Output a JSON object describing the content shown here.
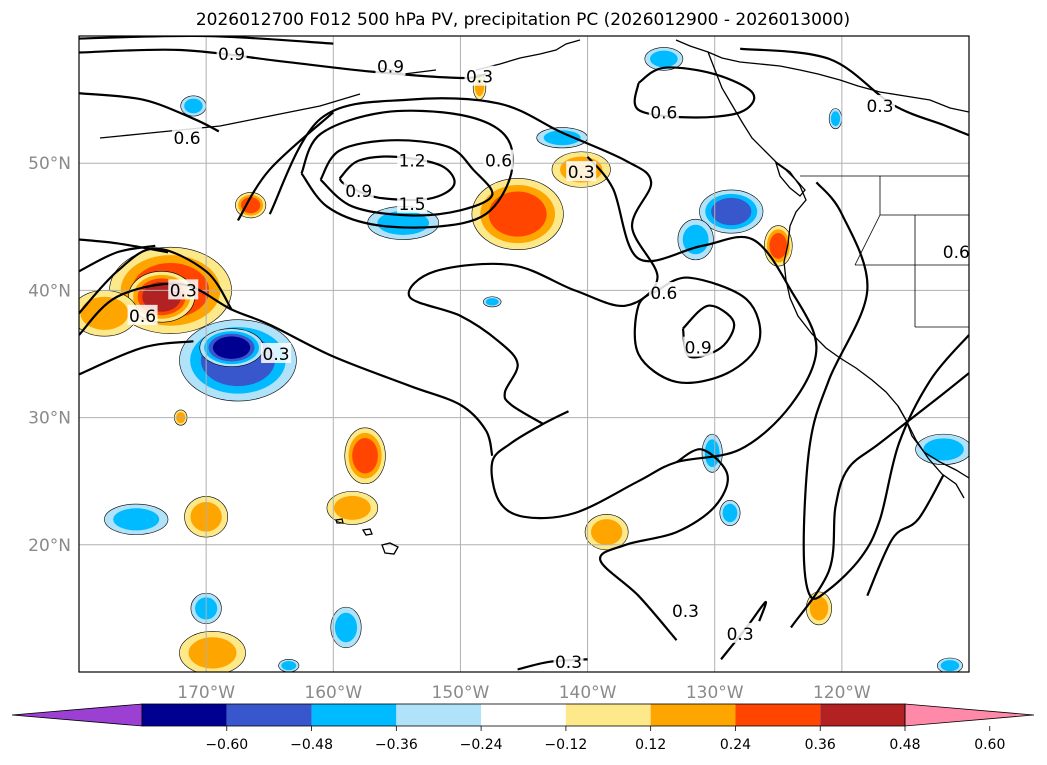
{
  "chart_data": {
    "type": "contour-map",
    "title": "2026012700 F012 500 hPa PV, precipitation PC (2026012900 - 2026013000)",
    "projection": "lat-lon",
    "lon_range": [
      -180,
      -110
    ],
    "lat_range": [
      10,
      60
    ],
    "grid": true,
    "lon_ticks": [
      {
        "value": -170,
        "label": "170°W"
      },
      {
        "value": -160,
        "label": "160°W"
      },
      {
        "value": -150,
        "label": "150°W"
      },
      {
        "value": -140,
        "label": "140°W"
      },
      {
        "value": -130,
        "label": "130°W"
      },
      {
        "value": -120,
        "label": "120°W"
      }
    ],
    "lat_ticks": [
      {
        "value": 50,
        "label": "50°N"
      },
      {
        "value": 40,
        "label": "40°N"
      },
      {
        "value": 30,
        "label": "30°N"
      },
      {
        "value": 20,
        "label": "20°N"
      }
    ],
    "pv_contour_levels": [
      0.3,
      0.6,
      0.9,
      1.2,
      1.5
    ],
    "contour_labels": [
      {
        "text": "0.9",
        "lon": -168.0,
        "lat": 58.6
      },
      {
        "text": "0.9",
        "lon": -155.5,
        "lat": 57.6
      },
      {
        "text": "0.3",
        "lon": -148.5,
        "lat": 56.8
      },
      {
        "text": "0.6",
        "lon": -134.0,
        "lat": 54.0
      },
      {
        "text": "0.3",
        "lon": -117.0,
        "lat": 54.5
      },
      {
        "text": "0.6",
        "lon": -171.5,
        "lat": 52.0
      },
      {
        "text": "1.2",
        "lon": -153.8,
        "lat": 50.2
      },
      {
        "text": "0.6",
        "lon": -147.0,
        "lat": 50.2
      },
      {
        "text": "0.3",
        "lon": -140.5,
        "lat": 49.3
      },
      {
        "text": "0.9",
        "lon": -158.0,
        "lat": 47.8
      },
      {
        "text": "1.5",
        "lon": -153.8,
        "lat": 46.8
      },
      {
        "text": "0.6",
        "lon": -111.0,
        "lat": 43.0
      },
      {
        "text": "0.3",
        "lon": -171.8,
        "lat": 40.0
      },
      {
        "text": "0.6",
        "lon": -175.0,
        "lat": 38.0
      },
      {
        "text": "0.6",
        "lon": -134.0,
        "lat": 39.8
      },
      {
        "text": "0.9",
        "lon": -131.3,
        "lat": 35.5
      },
      {
        "text": "0.3",
        "lon": -164.5,
        "lat": 35.0
      },
      {
        "text": "0.3",
        "lon": -132.3,
        "lat": 14.8
      },
      {
        "text": "0.3",
        "lon": -128.0,
        "lat": 13.0
      },
      {
        "text": "0.3",
        "lon": -141.5,
        "lat": 10.8
      }
    ],
    "pv_contours": [
      {
        "level": 0.9,
        "points": [
          [
            -180,
            58.7
          ],
          [
            -172,
            58.9
          ],
          [
            -164,
            58.0
          ],
          [
            -157,
            57.2
          ],
          [
            -150,
            56.7
          ],
          [
            -148,
            57.0
          ]
        ]
      },
      {
        "level": 0.9,
        "points": [
          [
            -180,
            59.8
          ],
          [
            -170,
            60.0
          ],
          [
            -160,
            59.4
          ]
        ]
      },
      {
        "level": 0.6,
        "points": [
          [
            -180,
            55.5
          ],
          [
            -175,
            55.0
          ],
          [
            -171,
            53.5
          ],
          [
            -169,
            52.5
          ]
        ]
      },
      {
        "level": 0.3,
        "points": [
          [
            -136,
            56.3
          ],
          [
            -134,
            57.5
          ],
          [
            -130,
            57.0
          ],
          [
            -127,
            55.5
          ],
          [
            -128,
            54.0
          ],
          [
            -132,
            53.6
          ],
          [
            -136,
            54.2
          ],
          [
            -136,
            56.3
          ]
        ]
      },
      {
        "level": 0.3,
        "points": [
          [
            -128,
            59.0
          ],
          [
            -121,
            58.2
          ],
          [
            -116,
            54.6
          ],
          [
            -112,
            53.0
          ],
          [
            -110,
            52.2
          ]
        ]
      },
      {
        "level": 1.5,
        "points": [
          [
            -159.5,
            48.8
          ],
          [
            -158,
            50.2
          ],
          [
            -155,
            50.5
          ],
          [
            -151.5,
            49.8
          ],
          [
            -150.5,
            48.3
          ],
          [
            -152.5,
            47.2
          ],
          [
            -156.5,
            47.3
          ],
          [
            -159,
            48.3
          ],
          [
            -159.5,
            48.8
          ]
        ]
      },
      {
        "level": 1.2,
        "points": [
          [
            -161,
            48.7
          ],
          [
            -159.5,
            51.0
          ],
          [
            -155.5,
            51.8
          ],
          [
            -151,
            51.3
          ],
          [
            -149,
            49.5
          ],
          [
            -147.5,
            47.5
          ],
          [
            -150,
            46.3
          ],
          [
            -154,
            45.9
          ],
          [
            -158.5,
            46.6
          ],
          [
            -161,
            48.7
          ]
        ]
      },
      {
        "level": 0.9,
        "points": [
          [
            -162.5,
            49.2
          ],
          [
            -161,
            52.3
          ],
          [
            -156,
            54.0
          ],
          [
            -150,
            53.8
          ],
          [
            -146.5,
            52.2
          ],
          [
            -146,
            49.2
          ],
          [
            -148,
            46.0
          ],
          [
            -152,
            45.0
          ],
          [
            -157,
            45.2
          ],
          [
            -160.5,
            46.6
          ],
          [
            -162.5,
            49.2
          ]
        ]
      },
      {
        "level": 0.6,
        "points": [
          [
            -165,
            46.0
          ],
          [
            -161,
            53.5
          ],
          [
            -154,
            55.0
          ],
          [
            -147,
            54.7
          ],
          [
            -142,
            52.4
          ],
          [
            -137,
            50.2
          ],
          [
            -135,
            48.5
          ],
          [
            -136.5,
            45.0
          ],
          [
            -134.5,
            41.0
          ],
          [
            -137,
            38.8
          ],
          [
            -141,
            40.0
          ],
          [
            -146,
            42.0
          ],
          [
            -152,
            41.5
          ],
          [
            -154,
            39.5
          ],
          [
            -150,
            38.0
          ],
          [
            -147,
            36.0
          ],
          [
            -145.5,
            34.2
          ],
          [
            -146.5,
            32.0
          ],
          [
            -146,
            31.0
          ],
          [
            -143.5,
            29.5
          ]
        ]
      },
      {
        "level": 0.3,
        "points": [
          [
            -167.5,
            45.5
          ],
          [
            -165,
            49.5
          ],
          [
            -160,
            54.0
          ]
        ]
      },
      {
        "level": 0.9,
        "points": [
          [
            -132.5,
            37.0
          ],
          [
            -130.5,
            38.8
          ],
          [
            -128.5,
            37.5
          ],
          [
            -129.5,
            35.5
          ],
          [
            -132,
            34.8
          ],
          [
            -132.5,
            37.0
          ]
        ]
      },
      {
        "level": 0.6,
        "points": [
          [
            -134.5,
            40.0
          ],
          [
            -132,
            41.0
          ],
          [
            -127.5,
            39.3
          ],
          [
            -126.5,
            36.0
          ],
          [
            -129,
            33.5
          ],
          [
            -133,
            32.8
          ],
          [
            -136,
            35.0
          ],
          [
            -136,
            38.8
          ],
          [
            -134.5,
            40.0
          ]
        ]
      },
      {
        "level": 0.3,
        "points": [
          [
            -140,
            50.5
          ],
          [
            -138,
            48.0
          ],
          [
            -136,
            42.5
          ],
          [
            -131,
            43.5
          ],
          [
            -127,
            44.0
          ],
          [
            -124,
            40.0
          ],
          [
            -122,
            35.5
          ],
          [
            -124,
            31.0
          ],
          [
            -128,
            27.5
          ],
          [
            -133,
            26.5
          ],
          [
            -136,
            25.0
          ],
          [
            -141,
            22.5
          ],
          [
            -145,
            22.2
          ],
          [
            -147,
            23.5
          ],
          [
            -147.5,
            26.5
          ],
          [
            -146,
            28.0
          ],
          [
            -143.5,
            29.5
          ],
          [
            -141.5,
            30.5
          ]
        ]
      },
      {
        "level": 0.3,
        "points": [
          [
            -180,
            36.5
          ],
          [
            -177,
            39.5
          ],
          [
            -172,
            40.5
          ],
          [
            -168,
            38.5
          ],
          [
            -165,
            37.3
          ],
          [
            -160,
            34.8
          ],
          [
            -154,
            32.5
          ],
          [
            -150,
            31.0
          ],
          [
            -148,
            29.0
          ],
          [
            -147.5,
            27.0
          ]
        ]
      },
      {
        "level": 0.6,
        "points": [
          [
            -180,
            38.2
          ],
          [
            -177,
            41.5
          ],
          [
            -174,
            43.3
          ],
          [
            -170,
            41.5
          ],
          [
            -168,
            38.5
          ]
        ]
      },
      {
        "level": 0.6,
        "points": [
          [
            -180,
            41.5
          ],
          [
            -177,
            43.0
          ],
          [
            -174,
            43.5
          ]
        ]
      },
      {
        "level": 0.3,
        "points": [
          [
            -180,
            33.4
          ],
          [
            -175,
            35.5
          ],
          [
            -171,
            36.0
          ]
        ]
      },
      {
        "level": 0.3,
        "points": [
          [
            -180,
            44.0
          ],
          [
            -177,
            43.7
          ],
          [
            -173,
            43.0
          ]
        ]
      },
      {
        "level": 0.3,
        "points": [
          [
            -122,
            48.5
          ],
          [
            -120,
            46.0
          ],
          [
            -118,
            40.0
          ],
          [
            -121,
            33.0
          ],
          [
            -122.5,
            28.0
          ],
          [
            -123,
            20.0
          ],
          [
            -122.5,
            16.0
          ],
          [
            -121,
            16.5
          ],
          [
            -118.5,
            19.0
          ],
          [
            -117,
            22.0
          ],
          [
            -115.5,
            28.0
          ],
          [
            -113,
            33.0
          ],
          [
            -110,
            36.5
          ]
        ]
      },
      {
        "level": 0.3,
        "points": [
          [
            -124,
            13.5
          ],
          [
            -121,
            18.0
          ],
          [
            -120.5,
            23.0
          ],
          [
            -119.5,
            26.0
          ],
          [
            -117,
            28.0
          ],
          [
            -112.5,
            31.5
          ],
          [
            -110,
            33.5
          ]
        ]
      },
      {
        "level": 0.3,
        "points": [
          [
            -133,
            12.5
          ],
          [
            -136,
            16.0
          ],
          [
            -139,
            18.8
          ],
          [
            -137,
            20.0
          ],
          [
            -133,
            21.0
          ],
          [
            -130,
            23.0
          ],
          [
            -129,
            25.5
          ],
          [
            -131,
            27.5
          ],
          [
            -133,
            26.5
          ]
        ]
      },
      {
        "level": 0.3,
        "points": [
          [
            -129.5,
            11.0
          ],
          [
            -127.5,
            13.5
          ],
          [
            -126,
            15.5
          ],
          [
            -126.5,
            14.0
          ]
        ]
      },
      {
        "level": 0.3,
        "points": [
          [
            -140,
            11.0
          ],
          [
            -143,
            10.8
          ],
          [
            -145.5,
            10.2
          ]
        ]
      },
      {
        "level": 0.3,
        "points": [
          [
            -112,
            25.5
          ],
          [
            -114,
            22.0
          ],
          [
            -116,
            20.5
          ],
          [
            -118,
            16.0
          ]
        ]
      }
    ],
    "precip_colorbar": {
      "levels": [
        -0.6,
        -0.48,
        -0.36,
        -0.24,
        -0.12,
        0.12,
        0.24,
        0.36,
        0.48,
        0.6
      ],
      "tick_labels": [
        "−0.60",
        "−0.48",
        "−0.36",
        "−0.24",
        "−0.12",
        "0.12",
        "0.24",
        "0.36",
        "0.48",
        "0.60"
      ],
      "colors": [
        "#9b40d2",
        "#000090",
        "#3857cc",
        "#00bbff",
        "#b0e2fa",
        "#ffffff",
        "#fde98a",
        "#ffa500",
        "#ff4500",
        "#b22222",
        "#ff89a8"
      ],
      "extend": "both"
    },
    "precip_anomalies": [
      {
        "lon": -172.8,
        "lat": 40.0,
        "rx": 4.8,
        "ry": 3.4,
        "value": 0.36
      },
      {
        "lon": -173.5,
        "lat": 39.5,
        "rx": 2.6,
        "ry": 2.0,
        "value": 0.48
      },
      {
        "lon": -178.0,
        "lat": 38.2,
        "rx": 2.6,
        "ry": 1.8,
        "value": 0.24
      },
      {
        "lon": -167.5,
        "lat": 34.5,
        "rx": 4.6,
        "ry": 3.2,
        "value": -0.36
      },
      {
        "lon": -168.0,
        "lat": 35.5,
        "rx": 2.5,
        "ry": 1.5,
        "value": -0.48
      },
      {
        "lon": -154.5,
        "lat": 45.3,
        "rx": 2.8,
        "ry": 1.3,
        "value": -0.24
      },
      {
        "lon": -145.5,
        "lat": 46.0,
        "rx": 3.6,
        "ry": 2.8,
        "value": 0.36
      },
      {
        "lon": -140.5,
        "lat": 49.5,
        "rx": 2.3,
        "ry": 1.4,
        "value": 0.24
      },
      {
        "lon": -128.7,
        "lat": 46.2,
        "rx": 2.5,
        "ry": 1.7,
        "value": -0.36
      },
      {
        "lon": -131.5,
        "lat": 44.0,
        "rx": 1.4,
        "ry": 1.6,
        "value": -0.24
      },
      {
        "lon": -125.0,
        "lat": 43.5,
        "rx": 1.1,
        "ry": 1.6,
        "value": 0.36
      },
      {
        "lon": -166.5,
        "lat": 46.7,
        "rx": 1.2,
        "ry": 1.0,
        "value": 0.36
      },
      {
        "lon": -157.5,
        "lat": 27.0,
        "rx": 1.6,
        "ry": 2.2,
        "value": 0.36
      },
      {
        "lon": -158.5,
        "lat": 22.9,
        "rx": 2.0,
        "ry": 1.3,
        "value": 0.24
      },
      {
        "lon": -170.0,
        "lat": 22.2,
        "rx": 1.7,
        "ry": 1.6,
        "value": 0.24
      },
      {
        "lon": -175.5,
        "lat": 22.0,
        "rx": 2.5,
        "ry": 1.2,
        "value": -0.24
      },
      {
        "lon": -172.0,
        "lat": 30.0,
        "rx": 0.5,
        "ry": 0.6,
        "value": 0.24
      },
      {
        "lon": -138.5,
        "lat": 21.0,
        "rx": 1.7,
        "ry": 1.4,
        "value": 0.24
      },
      {
        "lon": -130.2,
        "lat": 27.2,
        "rx": 0.8,
        "ry": 1.5,
        "value": -0.24
      },
      {
        "lon": -128.8,
        "lat": 22.5,
        "rx": 0.8,
        "ry": 1.0,
        "value": -0.24
      },
      {
        "lon": -170.0,
        "lat": 15.0,
        "rx": 1.2,
        "ry": 1.2,
        "value": -0.24
      },
      {
        "lon": -169.5,
        "lat": 11.5,
        "rx": 2.6,
        "ry": 1.7,
        "value": 0.24
      },
      {
        "lon": -159.0,
        "lat": 13.5,
        "rx": 1.2,
        "ry": 1.6,
        "value": -0.24
      },
      {
        "lon": -121.8,
        "lat": 15.0,
        "rx": 1.0,
        "ry": 1.3,
        "value": 0.24
      },
      {
        "lon": -112.0,
        "lat": 27.5,
        "rx": 2.2,
        "ry": 1.2,
        "value": -0.24
      },
      {
        "lon": -148.5,
        "lat": 56.0,
        "rx": 0.5,
        "ry": 1.0,
        "value": 0.24
      },
      {
        "lon": -171.0,
        "lat": 54.5,
        "rx": 1.0,
        "ry": 0.8,
        "value": -0.24
      },
      {
        "lon": -134.0,
        "lat": 58.2,
        "rx": 1.5,
        "ry": 0.9,
        "value": -0.24
      },
      {
        "lon": -142.0,
        "lat": 52.0,
        "rx": 2.0,
        "ry": 0.8,
        "value": -0.24
      },
      {
        "lon": -163.5,
        "lat": 10.5,
        "rx": 0.8,
        "ry": 0.5,
        "value": -0.24
      },
      {
        "lon": -147.5,
        "lat": 39.1,
        "rx": 0.7,
        "ry": 0.4,
        "value": -0.24
      },
      {
        "lon": -120.5,
        "lat": 53.5,
        "rx": 0.5,
        "ry": 0.8,
        "value": -0.24
      },
      {
        "lon": -111.5,
        "lat": 10.5,
        "rx": 1.0,
        "ry": 0.6,
        "value": -0.24
      }
    ]
  }
}
